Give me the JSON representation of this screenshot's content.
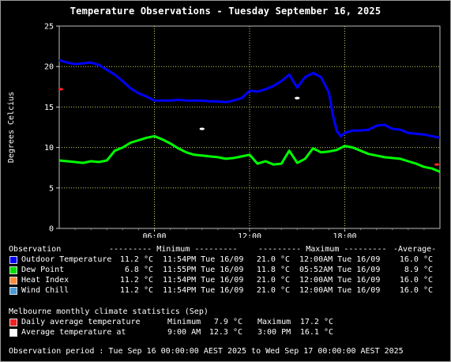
{
  "title": "Temperature Observations - Tuesday September 16, 2025",
  "chart_data": {
    "type": "line",
    "ylabel": "Degrees Celcius",
    "xlabel": "",
    "ylim": [
      0,
      25
    ],
    "xlim": [
      0,
      24
    ],
    "y_ticks": [
      "0",
      "5",
      "10",
      "15",
      "20",
      "25"
    ],
    "x_ticks": [
      {
        "x": 6,
        "label": "06:00"
      },
      {
        "x": 12,
        "label": "12:00"
      },
      {
        "x": 18,
        "label": "18:00"
      }
    ],
    "grid": true,
    "series": [
      {
        "name": "Outdoor Temperature",
        "color": "#0000ff",
        "x": [
          0,
          0.5,
          1,
          1.5,
          2,
          2.5,
          3,
          3.5,
          4,
          4.5,
          5,
          5.5,
          6,
          6.5,
          7,
          7.5,
          8,
          8.5,
          9,
          9.5,
          10,
          10.5,
          11,
          11.5,
          12,
          12.5,
          13,
          13.5,
          14,
          14.5,
          15,
          15.5,
          16,
          16.5,
          17,
          17.25,
          17.5,
          17.75,
          18,
          18.5,
          19,
          19.5,
          20,
          20.5,
          21,
          21.5,
          22,
          22.5,
          23,
          23.5,
          24
        ],
        "y": [
          20.8,
          20.5,
          20.3,
          20.4,
          20.5,
          20.2,
          19.6,
          19.0,
          18.2,
          17.3,
          16.7,
          16.3,
          15.8,
          15.8,
          15.8,
          15.9,
          15.8,
          15.8,
          15.8,
          15.7,
          15.7,
          15.6,
          15.8,
          16.1,
          17.0,
          16.9,
          17.2,
          17.6,
          18.2,
          19.0,
          17.4,
          18.7,
          19.2,
          18.7,
          16.8,
          14.0,
          12.0,
          11.4,
          11.8,
          12.1,
          12.1,
          12.2,
          12.7,
          12.8,
          12.3,
          12.2,
          11.8,
          11.7,
          11.6,
          11.4,
          11.2
        ]
      },
      {
        "name": "Dew Point",
        "color": "#00ff00",
        "x": [
          0,
          0.5,
          1,
          1.5,
          2,
          2.5,
          3,
          3.5,
          4,
          4.5,
          5,
          5.5,
          6,
          6.5,
          7,
          7.5,
          8,
          8.5,
          9,
          9.5,
          10,
          10.5,
          11,
          11.5,
          12,
          12.5,
          13,
          13.5,
          14,
          14.5,
          15,
          15.5,
          16,
          16.5,
          17,
          17.5,
          18,
          18.5,
          19,
          19.5,
          20,
          20.5,
          21,
          21.5,
          22,
          22.5,
          23,
          23.5,
          24
        ],
        "y": [
          8.4,
          8.3,
          8.2,
          8.1,
          8.3,
          8.2,
          8.4,
          9.6,
          10.0,
          10.6,
          10.9,
          11.2,
          11.4,
          11.0,
          10.5,
          9.9,
          9.4,
          9.1,
          9.0,
          8.9,
          8.8,
          8.6,
          8.7,
          8.9,
          9.1,
          8.0,
          8.3,
          7.9,
          8.0,
          9.6,
          8.1,
          8.6,
          9.9,
          9.4,
          9.5,
          9.7,
          10.2,
          10.0,
          9.6,
          9.2,
          9.0,
          8.8,
          8.7,
          8.6,
          8.3,
          8.0,
          7.6,
          7.4,
          7.0
        ]
      }
    ],
    "markers": [
      {
        "name": "Daily average temperature",
        "color": "#ff2222",
        "points": [
          {
            "x": 0.1,
            "y": 17.2
          },
          {
            "x": 23.8,
            "y": 7.9
          }
        ]
      },
      {
        "name": "Average temperature at",
        "color": "#ffffff",
        "points": [
          {
            "x": 9.0,
            "y": 12.3
          },
          {
            "x": 15.0,
            "y": 16.1
          }
        ]
      }
    ]
  },
  "legend": {
    "headers": {
      "observation": "Observation",
      "minimum": "--------- Minimum ---------",
      "maximum": "--------- Maximum ---------",
      "average": "-Average-"
    },
    "rows": [
      {
        "color": "#0000ff",
        "name": "Outdoor Temperature",
        "min": "11.2 °C",
        "min_time": "11:54PM Tue 16/09",
        "max": "21.0 °C",
        "max_time": "12:00AM Tue 16/09",
        "avg": "16.0 °C"
      },
      {
        "color": "#00dd00",
        "name": "Dew Point",
        "min": "6.8 °C",
        "min_time": "11:55PM Tue 16/09",
        "max": "11.8 °C",
        "max_time": "05:52AM Tue 16/09",
        "avg": "8.9 °C"
      },
      {
        "color": "#ff8c3c",
        "name": "Heat Index",
        "min": "11.2 °C",
        "min_time": "11:54PM Tue 16/09",
        "max": "21.0 °C",
        "max_time": "12:00AM Tue 16/09",
        "avg": "16.0 °C"
      },
      {
        "color": "#4a9bd8",
        "name": "Wind Chill",
        "min": "11.2 °C",
        "min_time": "11:54PM Tue 16/09",
        "max": "21.0 °C",
        "max_time": "12:00AM Tue 16/09",
        "avg": "16.0 °C"
      }
    ]
  },
  "climate": {
    "header": "Melbourne monthly climate statistics (Sep)",
    "rows": [
      {
        "color": "#ee2222",
        "name": "Daily average temperature",
        "c1": "Minimum",
        "c2": "7.9 °C",
        "c3": "Maximum",
        "c4": "17.2 °C"
      },
      {
        "color": "#ffffff",
        "name": "Average temperature at",
        "c1": "9:00 AM",
        "c2": "12.3 °C",
        "c3": "3:00 PM",
        "c4": "16.1 °C"
      }
    ]
  },
  "footer": "Observation period : Tue Sep 16 00:00:00 AEST 2025 to Wed Sep 17 00:00:00 AEST 2025"
}
